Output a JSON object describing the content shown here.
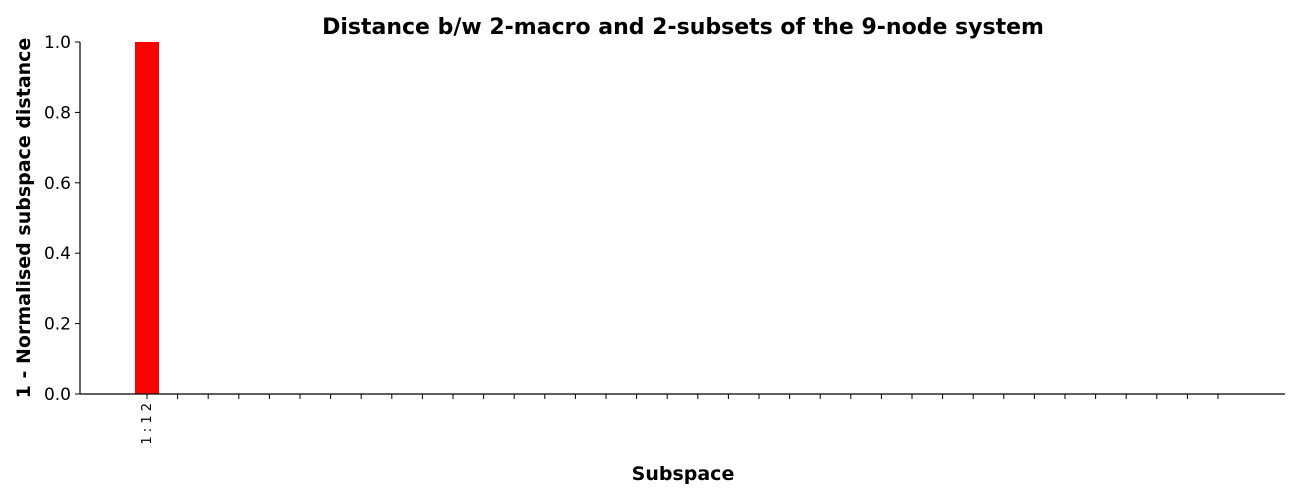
{
  "chart_data": {
    "type": "bar",
    "title": "Distance b/w 2-macro and 2-subsets of the 9-node system",
    "xlabel": "Subspace",
    "ylabel": "1 - Normalised subspace distance",
    "ylim": [
      0,
      1.0
    ],
    "yticks": [
      "0.0",
      "0.2",
      "0.4",
      "0.6",
      "0.8",
      "1.0"
    ],
    "categories": [
      "1 : 1 2",
      "",
      "",
      "",
      "",
      "",
      "",
      "",
      "",
      "",
      "",
      "",
      "",
      "",
      "",
      "",
      "",
      "",
      "",
      "",
      "",
      "",
      "",
      "",
      "",
      "",
      "",
      "",
      "",
      "",
      "",
      "",
      "",
      "",
      "",
      ""
    ],
    "values": [
      1.0,
      0,
      0,
      0,
      0,
      0,
      0,
      0,
      0,
      0,
      0,
      0,
      0,
      0,
      0,
      0,
      0,
      0,
      0,
      0,
      0,
      0,
      0,
      0,
      0,
      0,
      0,
      0,
      0,
      0,
      0,
      0,
      0,
      0,
      0,
      0
    ],
    "bar_color": "#ff0000",
    "grid": false,
    "legend": "none"
  }
}
